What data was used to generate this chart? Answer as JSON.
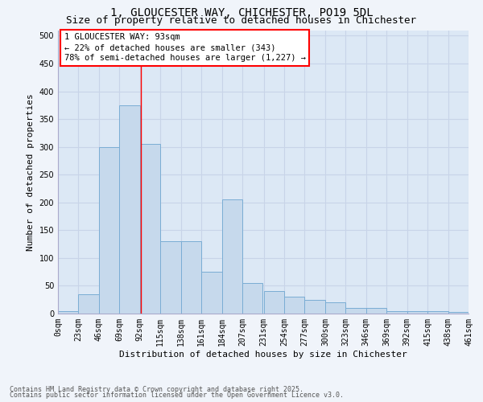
{
  "title_line1": "1, GLOUCESTER WAY, CHICHESTER, PO19 5DL",
  "title_line2": "Size of property relative to detached houses in Chichester",
  "xlabel": "Distribution of detached houses by size in Chichester",
  "ylabel": "Number of detached properties",
  "bar_color": "#c6d9ec",
  "bar_edge_color": "#7aadd4",
  "grid_color": "#c8d4e8",
  "background_color": "#dce8f5",
  "fig_background_color": "#f0f4fa",
  "bin_edges": [
    0,
    23,
    46,
    69,
    92,
    115,
    138,
    161,
    184,
    207,
    231,
    254,
    277,
    300,
    323,
    346,
    369,
    392,
    415,
    438,
    461
  ],
  "bin_labels": [
    "0sqm",
    "23sqm",
    "46sqm",
    "69sqm",
    "92sqm",
    "115sqm",
    "138sqm",
    "161sqm",
    "184sqm",
    "207sqm",
    "231sqm",
    "254sqm",
    "277sqm",
    "300sqm",
    "323sqm",
    "346sqm",
    "369sqm",
    "392sqm",
    "415sqm",
    "438sqm",
    "461sqm"
  ],
  "bar_heights": [
    5,
    35,
    300,
    375,
    305,
    130,
    130,
    75,
    205,
    55,
    40,
    30,
    25,
    20,
    10,
    10,
    5,
    5,
    5,
    3
  ],
  "ylim": [
    0,
    510
  ],
  "yticks": [
    0,
    50,
    100,
    150,
    200,
    250,
    300,
    350,
    400,
    450,
    500
  ],
  "property_line_x": 93,
  "annotation_box_text": "1 GLOUCESTER WAY: 93sqm\n← 22% of detached houses are smaller (343)\n78% of semi-detached houses are larger (1,227) →",
  "footer_line1": "Contains HM Land Registry data © Crown copyright and database right 2025.",
  "footer_line2": "Contains public sector information licensed under the Open Government Licence v3.0.",
  "title_fontsize": 10,
  "subtitle_fontsize": 9,
  "axis_label_fontsize": 8,
  "tick_fontsize": 7,
  "annotation_fontsize": 7.5,
  "footer_fontsize": 6
}
